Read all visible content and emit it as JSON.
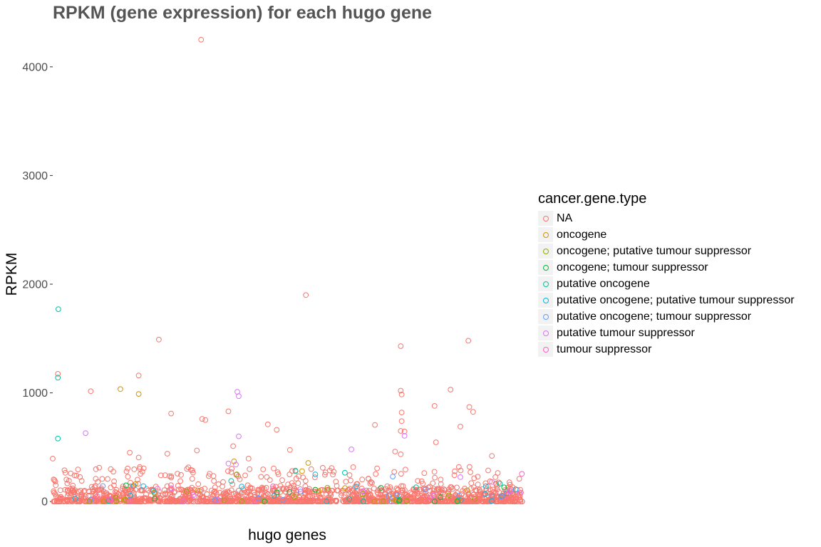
{
  "chart_data": {
    "type": "scatter",
    "title": "RPKM (gene expression) for each hugo gene",
    "xlabel": "hugo genes",
    "ylabel": "RPKM",
    "ylim": [
      -25,
      4320
    ],
    "y_ticks": [
      0,
      1000,
      2000,
      3000,
      4000
    ],
    "x_tick_labels": "none",
    "grid": false,
    "legend_position": "right",
    "legend": {
      "title": "cancer.gene.type",
      "entries": [
        {
          "name": "NA",
          "color": "#F8766D"
        },
        {
          "name": "oncogene",
          "color": "#D39200"
        },
        {
          "name": "oncogene; putative tumour suppressor",
          "color": "#93AA00"
        },
        {
          "name": "oncogene; tumour suppressor",
          "color": "#00BA38"
        },
        {
          "name": "putative oncogene",
          "color": "#00C19F"
        },
        {
          "name": "putative oncogene; putative tumour suppressor",
          "color": "#00B9E3"
        },
        {
          "name": "putative oncogene; tumour suppressor",
          "color": "#619CFF"
        },
        {
          "name": "putative tumour suppressor",
          "color": "#DB72FB"
        },
        {
          "name": "tumour suppressor",
          "color": "#FF61C3"
        }
      ]
    },
    "point_series_order": [
      "NA",
      "oncogene",
      "oncogene; putative tumour suppressor",
      "oncogene; tumour suppressor",
      "putative oncogene",
      "putative oncogene; putative tumour suppressor",
      "putative oncogene; tumour suppressor",
      "putative tumour suppressor",
      "tumour suppressor"
    ],
    "x_range": [
      0,
      1
    ],
    "notable_points": [
      {
        "x": 0.316,
        "y": 4250,
        "type": "NA"
      },
      {
        "x": 0.539,
        "y": 1900,
        "type": "NA"
      },
      {
        "x": 0.012,
        "y": 1770,
        "type": "putative oncogene"
      },
      {
        "x": 0.226,
        "y": 1490,
        "type": "NA"
      },
      {
        "x": 0.885,
        "y": 1480,
        "type": "NA"
      },
      {
        "x": 0.741,
        "y": 1430,
        "type": "NA"
      },
      {
        "x": 0.011,
        "y": 1175,
        "type": "NA"
      },
      {
        "x": 0.183,
        "y": 1160,
        "type": "NA"
      },
      {
        "x": 0.011,
        "y": 1140,
        "type": "putative oncogene"
      },
      {
        "x": 0.144,
        "y": 1035,
        "type": "oncogene"
      },
      {
        "x": 0.847,
        "y": 1030,
        "type": "NA"
      },
      {
        "x": 0.081,
        "y": 1015,
        "type": "NA"
      },
      {
        "x": 0.741,
        "y": 1020,
        "type": "NA"
      },
      {
        "x": 0.393,
        "y": 1010,
        "type": "putative tumour suppressor"
      },
      {
        "x": 0.183,
        "y": 990,
        "type": "oncogene"
      },
      {
        "x": 0.743,
        "y": 985,
        "type": "NA"
      },
      {
        "x": 0.396,
        "y": 970,
        "type": "putative tumour suppressor"
      },
      {
        "x": 0.813,
        "y": 880,
        "type": "NA"
      },
      {
        "x": 0.887,
        "y": 870,
        "type": "NA"
      },
      {
        "x": 0.374,
        "y": 830,
        "type": "NA"
      },
      {
        "x": 0.895,
        "y": 825,
        "type": "NA"
      },
      {
        "x": 0.743,
        "y": 820,
        "type": "NA"
      },
      {
        "x": 0.252,
        "y": 810,
        "type": "NA"
      },
      {
        "x": 0.318,
        "y": 760,
        "type": "NA"
      },
      {
        "x": 0.325,
        "y": 750,
        "type": "NA"
      },
      {
        "x": 0.743,
        "y": 740,
        "type": "NA"
      },
      {
        "x": 0.458,
        "y": 710,
        "type": "NA"
      },
      {
        "x": 0.686,
        "y": 705,
        "type": "NA"
      },
      {
        "x": 0.868,
        "y": 690,
        "type": "NA"
      },
      {
        "x": 0.477,
        "y": 660,
        "type": "NA"
      },
      {
        "x": 0.741,
        "y": 650,
        "type": "NA"
      },
      {
        "x": 0.749,
        "y": 645,
        "type": "NA"
      },
      {
        "x": 0.07,
        "y": 630,
        "type": "putative tumour suppressor"
      },
      {
        "x": 0.749,
        "y": 605,
        "type": "putative tumour suppressor"
      },
      {
        "x": 0.396,
        "y": 600,
        "type": "putative tumour suppressor"
      },
      {
        "x": 0.011,
        "y": 580,
        "type": "putative oncogene"
      },
      {
        "x": 0.816,
        "y": 545,
        "type": "NA"
      },
      {
        "x": 0.384,
        "y": 510,
        "type": "NA"
      },
      {
        "x": 0.636,
        "y": 480,
        "type": "putative tumour suppressor"
      },
      {
        "x": 0.505,
        "y": 475,
        "type": "NA"
      },
      {
        "x": 0.307,
        "y": 470,
        "type": "NA"
      },
      {
        "x": 0.729,
        "y": 460,
        "type": "NA"
      },
      {
        "x": 0.164,
        "y": 450,
        "type": "NA"
      },
      {
        "x": 0.244,
        "y": 440,
        "type": "NA"
      },
      {
        "x": 0.741,
        "y": 435,
        "type": "NA"
      },
      {
        "x": 0.935,
        "y": 420,
        "type": "NA"
      },
      {
        "x": 0.0,
        "y": 395,
        "type": "NA"
      },
      {
        "x": 0.417,
        "y": 395,
        "type": "NA"
      },
      {
        "x": 0.183,
        "y": 405,
        "type": "NA"
      },
      {
        "x": 0.386,
        "y": 370,
        "type": "oncogene"
      },
      {
        "x": 0.544,
        "y": 355,
        "type": "oncogene"
      },
      {
        "x": 0.374,
        "y": 350,
        "type": "putative tumour suppressor"
      },
      {
        "x": 0.39,
        "y": 340,
        "type": "putative tumour suppressor"
      },
      {
        "x": 0.531,
        "y": 280,
        "type": "oncogene"
      },
      {
        "x": 0.517,
        "y": 280,
        "type": "putative oncogene"
      },
      {
        "x": 0.622,
        "y": 265,
        "type": "putative oncogene"
      },
      {
        "x": 0.559,
        "y": 250,
        "type": "putative oncogene; putative tumour suppressor"
      },
      {
        "x": 0.999,
        "y": 255,
        "type": "tumour suppressor"
      },
      {
        "x": 0.724,
        "y": 230,
        "type": "putative oncogene; tumour suppressor"
      },
      {
        "x": 0.868,
        "y": 225,
        "type": "putative tumour suppressor"
      },
      {
        "x": 0.38,
        "y": 190,
        "type": "putative oncogene"
      },
      {
        "x": 0.952,
        "y": 165,
        "type": "putative oncogene"
      },
      {
        "x": 0.935,
        "y": 180,
        "type": "putative tumour suppressor"
      },
      {
        "x": 0.176,
        "y": 160,
        "type": "oncogene"
      },
      {
        "x": 0.216,
        "y": 80,
        "type": "oncogene; putative tumour suppressor"
      },
      {
        "x": 0.392,
        "y": 250,
        "type": "oncogene; putative tumour suppressor"
      },
      {
        "x": 0.966,
        "y": 60,
        "type": "tumour suppressor"
      }
    ],
    "dense_band": {
      "y_range": [
        0,
        120
      ],
      "type": "NA",
      "x_gaps": [
        [
          0.608,
          0.614
        ],
        [
          0.72,
          0.725
        ]
      ]
    }
  }
}
